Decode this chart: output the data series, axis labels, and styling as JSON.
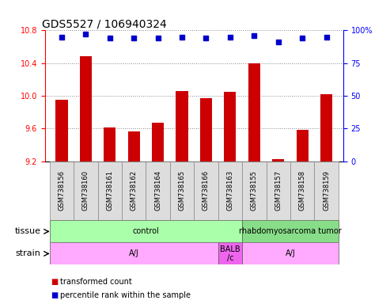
{
  "title": "GDS5527 / 106940324",
  "samples": [
    "GSM738156",
    "GSM738160",
    "GSM738161",
    "GSM738162",
    "GSM738164",
    "GSM738165",
    "GSM738166",
    "GSM738163",
    "GSM738155",
    "GSM738157",
    "GSM738158",
    "GSM738159"
  ],
  "transformed_count": [
    9.95,
    10.48,
    9.61,
    9.56,
    9.67,
    10.06,
    9.97,
    10.05,
    10.4,
    9.22,
    9.58,
    10.02
  ],
  "percentile_rank": [
    95,
    97,
    94,
    94,
    94,
    95,
    94,
    95,
    96,
    91,
    94,
    95
  ],
  "ylim_left": [
    9.2,
    10.8
  ],
  "ylim_right": [
    0,
    100
  ],
  "yticks_left": [
    9.2,
    9.6,
    10.0,
    10.4,
    10.8
  ],
  "yticks_right": [
    0,
    25,
    50,
    75,
    100
  ],
  "bar_color": "#cc0000",
  "dot_color": "#0000cc",
  "bar_width": 0.5,
  "tissue_groups": [
    {
      "label": "control",
      "start": 0,
      "end": 8,
      "color": "#aaffaa"
    },
    {
      "label": "rhabdomyosarcoma tumor",
      "start": 8,
      "end": 12,
      "color": "#88dd88"
    }
  ],
  "strain_groups": [
    {
      "label": "A/J",
      "start": 0,
      "end": 7,
      "color": "#ffaaff"
    },
    {
      "label": "BALB\n/c",
      "start": 7,
      "end": 8,
      "color": "#ee66ee"
    },
    {
      "label": "A/J",
      "start": 8,
      "end": 12,
      "color": "#ffaaff"
    }
  ],
  "legend_items": [
    {
      "label": "transformed count",
      "color": "#cc0000"
    },
    {
      "label": "percentile rank within the sample",
      "color": "#0000cc"
    }
  ],
  "title_fontsize": 10,
  "tick_fontsize": 7,
  "label_fontsize": 8,
  "sample_fontsize": 6,
  "grid_color": "#888888"
}
